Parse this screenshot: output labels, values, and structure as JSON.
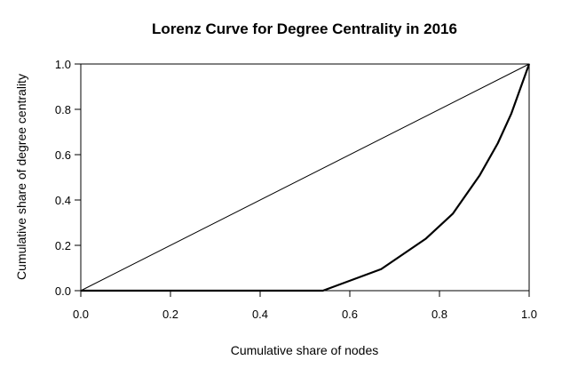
{
  "chart_data": {
    "type": "line",
    "title": "Lorenz Curve for Degree Centrality in 2016",
    "xlabel": "Cumulative share of nodes",
    "ylabel": "Cumulative share of degree centrality",
    "xlim": [
      0,
      1
    ],
    "ylim": [
      0,
      1
    ],
    "x_ticks": [
      0.0,
      0.2,
      0.4,
      0.6,
      0.8,
      1.0
    ],
    "y_ticks": [
      0.0,
      0.2,
      0.4,
      0.6,
      0.8,
      1.0
    ],
    "x_tick_labels": [
      "0.0",
      "0.2",
      "0.4",
      "0.6",
      "0.8",
      "1.0"
    ],
    "y_tick_labels": [
      "0.0",
      "0.2",
      "0.4",
      "0.6",
      "0.8",
      "1.0"
    ],
    "grid": false,
    "series": [
      {
        "role": "equality-line",
        "color": "#000000",
        "x": [
          0,
          1
        ],
        "y": [
          0,
          1
        ]
      },
      {
        "role": "lorenz-curve",
        "color": "#000000",
        "x": [
          0,
          0.54,
          0.67,
          0.77,
          0.83,
          0.89,
          0.93,
          0.96,
          0.98,
          1.0
        ],
        "y": [
          0,
          0,
          0.095,
          0.23,
          0.34,
          0.51,
          0.65,
          0.78,
          0.89,
          1.0
        ]
      }
    ]
  }
}
